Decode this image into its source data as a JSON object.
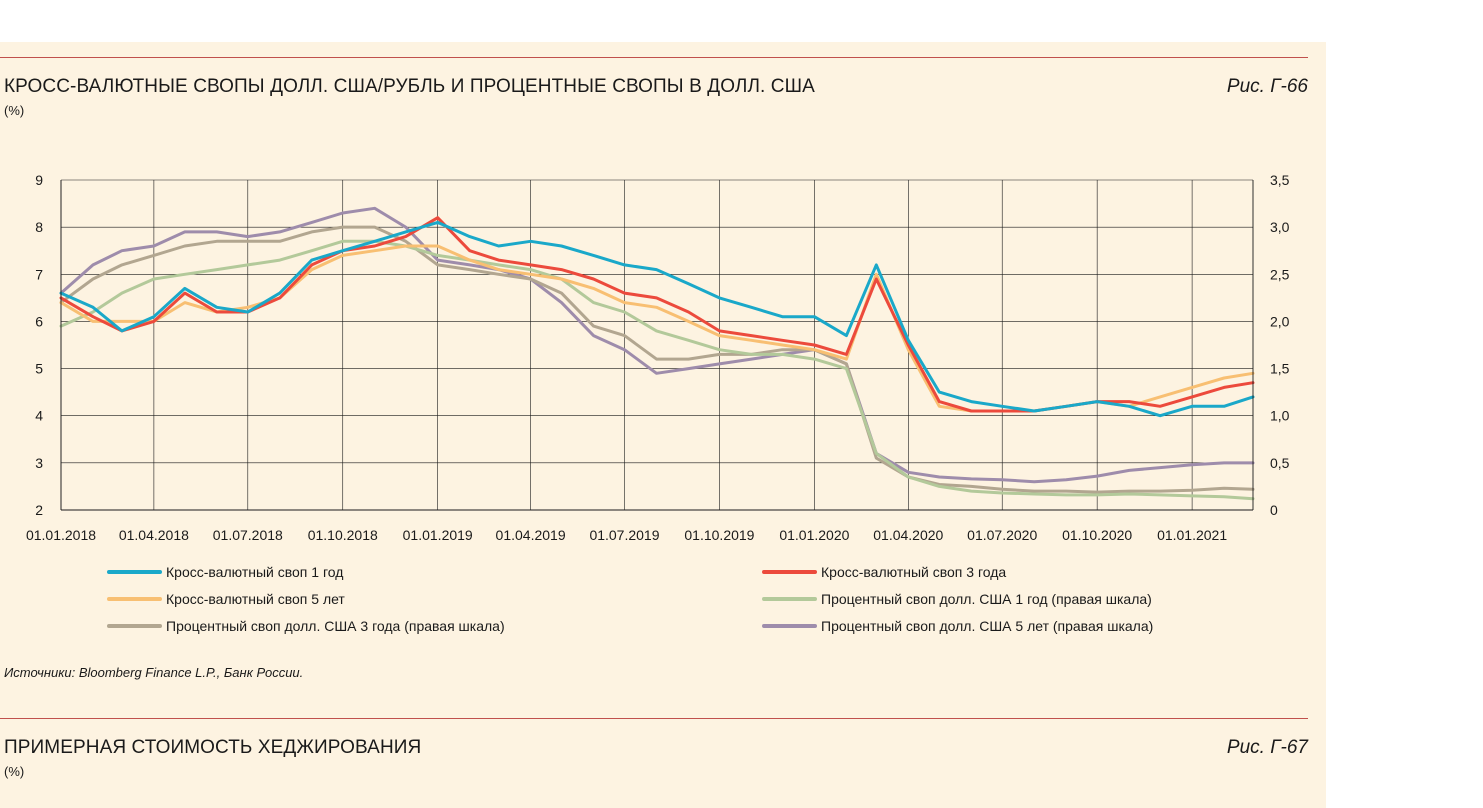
{
  "figure1": {
    "title": "КРОСС-ВАЛЮТНЫЕ СВОПЫ ДОЛЛ. США/РУБЛЬ И ПРОЦЕНТНЫЕ СВОПЫ В ДОЛЛ. США",
    "unit": "(%)",
    "fig_label": "Рис. Г-66",
    "source": "Источники: Bloomberg Finance L.P., Банк России."
  },
  "figure2": {
    "title": "ПРИМЕРНАЯ СТОИМОСТЬ ХЕДЖИРОВАНИЯ",
    "unit": "(%)",
    "fig_label": "Рис. Г-67"
  },
  "colors": {
    "panel_background": "#fdf3e1",
    "rule": "#c0504d",
    "cross_1y": "#1aa8c9",
    "cross_3y": "#ec4a3c",
    "cross_5y": "#f8bf72",
    "irs_1y": "#b3c99a",
    "irs_3y": "#b2a690",
    "irs_5y": "#9e8cab"
  },
  "chart_data": {
    "type": "line",
    "title": "",
    "xlabel": "",
    "ylabel": "",
    "grid": true,
    "legend_placement": "bottom",
    "x_ticks": [
      "01.01.2018",
      "01.04.2018",
      "01.07.2018",
      "01.10.2018",
      "01.01.2019",
      "01.04.2019",
      "01.07.2019",
      "01.10.2019",
      "01.01.2020",
      "01.04.2020",
      "01.07.2020",
      "01.10.2020",
      "01.01.2021"
    ],
    "x_range": [
      "01.01.2018",
      "01.03.2021"
    ],
    "y_left": {
      "ticks": [
        "2",
        "3",
        "4",
        "5",
        "6",
        "7",
        "8",
        "9"
      ],
      "ylim": [
        2,
        9
      ]
    },
    "y_right": {
      "ticks": [
        "0",
        "0,5",
        "1,0",
        "1,5",
        "2,0",
        "2,5",
        "3,0",
        "3,5"
      ],
      "ylim": [
        0,
        3.5
      ]
    },
    "series": [
      {
        "name": "Кросс-валютный своп 1 год",
        "axis": "left",
        "color_key": "cross_1y",
        "x": [
          "01.01.2018",
          "01.02.2018",
          "01.03.2018",
          "01.04.2018",
          "01.05.2018",
          "01.06.2018",
          "01.07.2018",
          "01.08.2018",
          "01.09.2018",
          "01.10.2018",
          "01.11.2018",
          "01.12.2018",
          "01.01.2019",
          "01.02.2019",
          "01.03.2019",
          "01.04.2019",
          "01.05.2019",
          "01.06.2019",
          "01.07.2019",
          "01.08.2019",
          "01.09.2019",
          "01.10.2019",
          "01.11.2019",
          "01.12.2019",
          "01.01.2020",
          "01.02.2020",
          "01.03.2020",
          "01.04.2020",
          "01.05.2020",
          "01.06.2020",
          "01.07.2020",
          "01.08.2020",
          "01.09.2020",
          "01.10.2020",
          "01.11.2020",
          "01.12.2020",
          "01.01.2021",
          "01.02.2021",
          "01.03.2021"
        ],
        "values": [
          6.6,
          6.3,
          5.8,
          6.1,
          6.7,
          6.3,
          6.2,
          6.6,
          7.3,
          7.5,
          7.7,
          7.9,
          8.1,
          7.8,
          7.6,
          7.7,
          7.6,
          7.4,
          7.2,
          7.1,
          6.8,
          6.5,
          6.3,
          6.1,
          6.1,
          5.7,
          7.2,
          5.6,
          4.5,
          4.3,
          4.2,
          4.1,
          4.2,
          4.3,
          4.2,
          4.0,
          4.2,
          4.2,
          4.4
        ]
      },
      {
        "name": "Кросс-валютный своп 3 года",
        "axis": "left",
        "color_key": "cross_3y",
        "x": [
          "01.01.2018",
          "01.02.2018",
          "01.03.2018",
          "01.04.2018",
          "01.05.2018",
          "01.06.2018",
          "01.07.2018",
          "01.08.2018",
          "01.09.2018",
          "01.10.2018",
          "01.11.2018",
          "01.12.2018",
          "01.01.2019",
          "01.02.2019",
          "01.03.2019",
          "01.04.2019",
          "01.05.2019",
          "01.06.2019",
          "01.07.2019",
          "01.08.2019",
          "01.09.2019",
          "01.10.2019",
          "01.11.2019",
          "01.12.2019",
          "01.01.2020",
          "01.02.2020",
          "01.03.2020",
          "01.04.2020",
          "01.05.2020",
          "01.06.2020",
          "01.07.2020",
          "01.08.2020",
          "01.09.2020",
          "01.10.2020",
          "01.11.2020",
          "01.12.2020",
          "01.01.2021",
          "01.02.2021",
          "01.03.2021"
        ],
        "values": [
          6.5,
          6.1,
          5.8,
          6.0,
          6.6,
          6.2,
          6.2,
          6.5,
          7.2,
          7.5,
          7.6,
          7.8,
          8.2,
          7.5,
          7.3,
          7.2,
          7.1,
          6.9,
          6.6,
          6.5,
          6.2,
          5.8,
          5.7,
          5.6,
          5.5,
          5.3,
          6.9,
          5.5,
          4.3,
          4.1,
          4.1,
          4.1,
          4.2,
          4.3,
          4.3,
          4.2,
          4.4,
          4.6,
          4.7
        ]
      },
      {
        "name": "Кросс-валютный своп 5 лет",
        "axis": "left",
        "color_key": "cross_5y",
        "x": [
          "01.01.2018",
          "01.02.2018",
          "01.03.2018",
          "01.04.2018",
          "01.05.2018",
          "01.06.2018",
          "01.07.2018",
          "01.08.2018",
          "01.09.2018",
          "01.10.2018",
          "01.11.2018",
          "01.12.2018",
          "01.01.2019",
          "01.02.2019",
          "01.03.2019",
          "01.04.2019",
          "01.05.2019",
          "01.06.2019",
          "01.07.2019",
          "01.08.2019",
          "01.09.2019",
          "01.10.2019",
          "01.11.2019",
          "01.12.2019",
          "01.01.2020",
          "01.02.2020",
          "01.03.2020",
          "01.04.2020",
          "01.05.2020",
          "01.06.2020",
          "01.07.2020",
          "01.08.2020",
          "01.09.2020",
          "01.10.2020",
          "01.11.2020",
          "01.12.2020",
          "01.01.2021",
          "01.02.2021",
          "01.03.2021"
        ],
        "values": [
          6.4,
          6.0,
          6.0,
          6.0,
          6.4,
          6.2,
          6.3,
          6.5,
          7.1,
          7.4,
          7.5,
          7.6,
          7.6,
          7.3,
          7.1,
          7.0,
          6.9,
          6.7,
          6.4,
          6.3,
          6.0,
          5.7,
          5.6,
          5.5,
          5.4,
          5.2,
          7.0,
          5.4,
          4.2,
          4.1,
          4.1,
          4.1,
          4.2,
          4.3,
          4.2,
          4.4,
          4.6,
          4.8,
          4.9
        ]
      },
      {
        "name": "Процентный своп долл. США 1 год (правая шкала)",
        "axis": "right",
        "color_key": "irs_1y",
        "x": [
          "01.01.2018",
          "01.02.2018",
          "01.03.2018",
          "01.04.2018",
          "01.05.2018",
          "01.06.2018",
          "01.07.2018",
          "01.08.2018",
          "01.09.2018",
          "01.10.2018",
          "01.11.2018",
          "01.12.2018",
          "01.01.2019",
          "01.02.2019",
          "01.03.2019",
          "01.04.2019",
          "01.05.2019",
          "01.06.2019",
          "01.07.2019",
          "01.08.2019",
          "01.09.2019",
          "01.10.2019",
          "01.11.2019",
          "01.12.2019",
          "01.01.2020",
          "01.02.2020",
          "01.03.2020",
          "01.04.2020",
          "01.05.2020",
          "01.06.2020",
          "01.07.2020",
          "01.08.2020",
          "01.09.2020",
          "01.10.2020",
          "01.11.2020",
          "01.12.2020",
          "01.01.2021",
          "01.02.2021",
          "01.03.2021"
        ],
        "values": [
          1.95,
          2.1,
          2.3,
          2.45,
          2.5,
          2.55,
          2.6,
          2.65,
          2.75,
          2.85,
          2.85,
          2.8,
          2.7,
          2.65,
          2.6,
          2.55,
          2.45,
          2.2,
          2.1,
          1.9,
          1.8,
          1.7,
          1.65,
          1.65,
          1.6,
          1.5,
          0.6,
          0.35,
          0.25,
          0.2,
          0.18,
          0.17,
          0.16,
          0.16,
          0.17,
          0.16,
          0.15,
          0.14,
          0.12
        ]
      },
      {
        "name": "Процентный своп долл. США 3 года (правая шкала)",
        "axis": "right",
        "color_key": "irs_3y",
        "x": [
          "01.01.2018",
          "01.02.2018",
          "01.03.2018",
          "01.04.2018",
          "01.05.2018",
          "01.06.2018",
          "01.07.2018",
          "01.08.2018",
          "01.09.2018",
          "01.10.2018",
          "01.11.2018",
          "01.12.2018",
          "01.01.2019",
          "01.02.2019",
          "01.03.2019",
          "01.04.2019",
          "01.05.2019",
          "01.06.2019",
          "01.07.2019",
          "01.08.2019",
          "01.09.2019",
          "01.10.2019",
          "01.11.2019",
          "01.12.2019",
          "01.01.2020",
          "01.02.2020",
          "01.03.2020",
          "01.04.2020",
          "01.05.2020",
          "01.06.2020",
          "01.07.2020",
          "01.08.2020",
          "01.09.2020",
          "01.10.2020",
          "01.11.2020",
          "01.12.2020",
          "01.01.2021",
          "01.02.2021",
          "01.03.2021"
        ],
        "values": [
          2.2,
          2.45,
          2.6,
          2.7,
          2.8,
          2.85,
          2.85,
          2.85,
          2.95,
          3.0,
          3.0,
          2.85,
          2.6,
          2.55,
          2.5,
          2.45,
          2.3,
          1.95,
          1.85,
          1.6,
          1.6,
          1.65,
          1.65,
          1.7,
          1.7,
          1.55,
          0.55,
          0.35,
          0.27,
          0.25,
          0.22,
          0.2,
          0.2,
          0.19,
          0.2,
          0.2,
          0.21,
          0.23,
          0.22
        ]
      },
      {
        "name": "Процентный своп долл. США 5 лет (правая шкала)",
        "axis": "right",
        "color_key": "irs_5y",
        "x": [
          "01.01.2018",
          "01.02.2018",
          "01.03.2018",
          "01.04.2018",
          "01.05.2018",
          "01.06.2018",
          "01.07.2018",
          "01.08.2018",
          "01.09.2018",
          "01.10.2018",
          "01.11.2018",
          "01.12.2018",
          "01.01.2019",
          "01.02.2019",
          "01.03.2019",
          "01.04.2019",
          "01.05.2019",
          "01.06.2019",
          "01.07.2019",
          "01.08.2019",
          "01.09.2019",
          "01.10.2019",
          "01.11.2019",
          "01.12.2019",
          "01.01.2020",
          "01.02.2020",
          "01.03.2020",
          "01.04.2020",
          "01.05.2020",
          "01.06.2020",
          "01.07.2020",
          "01.08.2020",
          "01.09.2020",
          "01.10.2020",
          "01.11.2020",
          "01.12.2020",
          "01.01.2021",
          "01.02.2021",
          "01.03.2021"
        ],
        "values": [
          2.3,
          2.6,
          2.75,
          2.8,
          2.95,
          2.95,
          2.9,
          2.95,
          3.05,
          3.15,
          3.2,
          3.0,
          2.65,
          2.6,
          2.55,
          2.45,
          2.2,
          1.85,
          1.7,
          1.45,
          1.5,
          1.55,
          1.6,
          1.65,
          1.7,
          1.55,
          0.6,
          0.4,
          0.35,
          0.33,
          0.32,
          0.3,
          0.32,
          0.36,
          0.42,
          0.45,
          0.48,
          0.5,
          0.5
        ]
      }
    ]
  }
}
